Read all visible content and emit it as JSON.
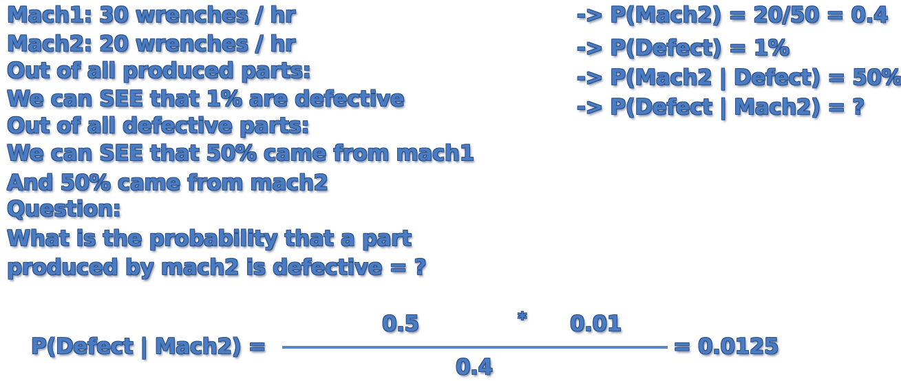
{
  "left_lines": [
    "Mach1: 30 wrenches / hr",
    "Mach2: 20 wrenches / hr",
    "Out of all produced parts:",
    "We can SEE that 1% are defective",
    "Out of all defective parts:",
    "We can SEE that 50% came from mach1",
    "And 50% came from mach2",
    "Question:",
    "What is the probability that a part",
    "produced by mach2 is defective = ?"
  ],
  "right_lines": [
    "-> P(Mach2) = 20/50 = 0.4",
    "-> P(Defect) = 1%",
    "-> P(Mach2 | Defect) = 50%",
    "-> P(Defect | Mach2) = ?"
  ],
  "formula": {
    "lhs": "P(Defect | Mach2) =",
    "numerator_left": "0.5",
    "operator": "*",
    "numerator_right": "0.01",
    "denominator": "0.4",
    "result": "= 0.0125"
  }
}
